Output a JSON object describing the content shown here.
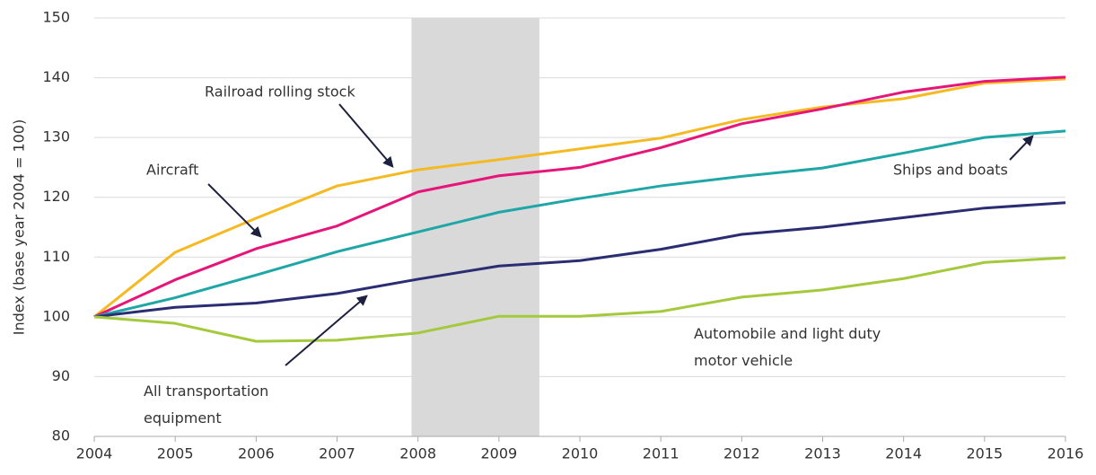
{
  "chart_data": {
    "type": "line",
    "y_label": "Index (base year 2004 = 100)",
    "x": [
      2004,
      2005,
      2006,
      2007,
      2008,
      2009,
      2010,
      2011,
      2012,
      2013,
      2014,
      2015,
      2016
    ],
    "xlim": [
      2004,
      2016
    ],
    "xticks": [
      2004,
      2005,
      2006,
      2007,
      2008,
      2009,
      2010,
      2011,
      2012,
      2013,
      2014,
      2015,
      2016
    ],
    "ylim": [
      80,
      150
    ],
    "yticks": [
      80,
      90,
      100,
      110,
      120,
      130,
      140,
      150
    ],
    "grid": true,
    "shade": {
      "x": [
        2007.92,
        2009.5
      ],
      "color": "#d9d9d9"
    },
    "series": [
      {
        "name": "Railroad rolling stock",
        "color": "#f5b921",
        "values": [
          100,
          110.8,
          116.5,
          121.9,
          124.6,
          126.3,
          128.1,
          129.9,
          133,
          135.1,
          136.5,
          139.1,
          139.8
        ]
      },
      {
        "name": "Aircraft",
        "color": "#e6157a",
        "values": [
          100,
          106.2,
          111.4,
          115.2,
          120.9,
          123.6,
          125,
          128.3,
          132.3,
          134.8,
          137.6,
          139.4,
          140.1
        ]
      },
      {
        "name": "Ships and boats",
        "color": "#1fa6a6",
        "values": [
          100,
          103.2,
          107,
          110.9,
          114.2,
          117.5,
          119.8,
          121.9,
          123.5,
          124.9,
          127.4,
          130,
          131.1
        ]
      },
      {
        "name": "All transportation equipment",
        "color": "#2b2d72",
        "values": [
          100,
          101.6,
          102.3,
          103.9,
          106.3,
          108.5,
          109.4,
          111.3,
          113.8,
          115,
          116.6,
          118.2,
          119.1
        ]
      },
      {
        "name": "Automobile and light duty motor vehicle",
        "color": "#a4c93c",
        "values": [
          100,
          98.9,
          95.9,
          96.1,
          97.3,
          100.1,
          100.1,
          100.9,
          103.3,
          104.5,
          106.4,
          109.1,
          109.9
        ]
      }
    ]
  }
}
